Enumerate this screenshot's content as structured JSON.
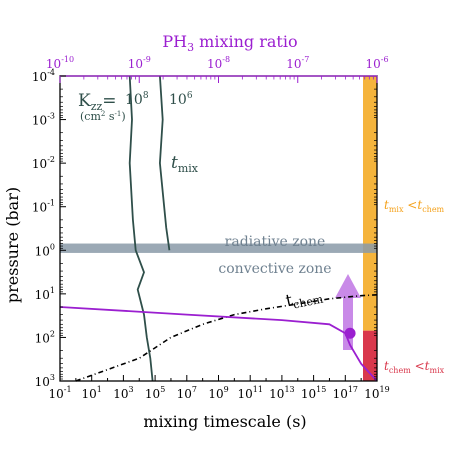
{
  "chart_data": {
    "type": "line",
    "title": "PH3 mixing ratio",
    "xlabel": "mixing timescale (s)",
    "ylabel": "pressure (bar)",
    "x_scale": "log",
    "y_scale": "log",
    "y_inverted": true,
    "xlim": [
      0.1,
      1e+19
    ],
    "ylim": [
      0.0001,
      1000.0
    ],
    "x_ticks": [
      {
        "value": 0.1,
        "label": "10^-1"
      },
      {
        "value": 10,
        "label": "10^1"
      },
      {
        "value": 1000.0,
        "label": "10^3"
      },
      {
        "value": 100000.0,
        "label": "10^5"
      },
      {
        "value": 10000000.0,
        "label": "10^7"
      },
      {
        "value": 1000000000.0,
        "label": "10^9"
      },
      {
        "value": 100000000000.0,
        "label": "10^11"
      },
      {
        "value": 10000000000000.0,
        "label": "10^13"
      },
      {
        "value": 1000000000000000.0,
        "label": "10^15"
      },
      {
        "value": 1e+17,
        "label": "10^17"
      },
      {
        "value": 1e+19,
        "label": "10^19"
      }
    ],
    "y_ticks": [
      {
        "value": 0.0001,
        "label": "10^-4"
      },
      {
        "value": 0.001,
        "label": "10^-3"
      },
      {
        "value": 0.01,
        "label": "10^-2"
      },
      {
        "value": 0.1,
        "label": "10^-1"
      },
      {
        "value": 1,
        "label": "10^0"
      },
      {
        "value": 10,
        "label": "10^1"
      },
      {
        "value": 100,
        "label": "10^2"
      },
      {
        "value": 1000,
        "label": "10^3"
      }
    ],
    "top_axis": {
      "label": "PH3 mixing ratio",
      "scale": "log",
      "range": [
        1e-10,
        1e-06
      ],
      "ticks": [
        {
          "value": 1e-10,
          "label": "10^-10"
        },
        {
          "value": 1e-09,
          "label": "10^-9"
        },
        {
          "value": 1e-08,
          "label": "10^-8"
        },
        {
          "value": 1e-07,
          "label": "10^-7"
        },
        {
          "value": 1e-06,
          "label": "10^-6"
        }
      ],
      "color": "#9b1fd0"
    },
    "series": [
      {
        "name": "t_mix K_zz=10^8",
        "color": "#2f4f4a",
        "points": [
          [
            2500.0,
            0.0001
          ],
          [
            3500.0,
            0.001
          ],
          [
            2500.0,
            0.01
          ],
          [
            4000.0,
            0.2
          ],
          [
            6000.0,
            1
          ],
          [
            20000.0,
            3.2
          ],
          [
            8000.0,
            8
          ],
          [
            20000.0,
            30
          ],
          [
            30000.0,
            100
          ],
          [
            50000.0,
            300
          ],
          [
            70000.0,
            1000
          ]
        ]
      },
      {
        "name": "t_mix K_zz=10^6",
        "color": "#2f4f4a",
        "points": [
          [
            200000.0,
            0.0001
          ],
          [
            300000.0,
            0.001
          ],
          [
            200000.0,
            0.01
          ],
          [
            500000.0,
            0.3
          ],
          [
            800000.0,
            1
          ]
        ]
      },
      {
        "name": "t_chem",
        "color": "#000000",
        "points": [
          [
            1,
            1000
          ],
          [
            10000.0,
            300
          ],
          [
            1000000.0,
            100
          ],
          [
            100000000.0,
            50
          ],
          [
            10000000000.0,
            30
          ],
          [
            1000000000000.0,
            22
          ],
          [
            100000000000000.0,
            17
          ],
          [
            1e+16,
            13
          ],
          [
            1e+18,
            11
          ],
          [
            1e+19,
            10.5
          ]
        ]
      },
      {
        "name": "PH3 mixing ratio",
        "color": "#9b1fd0",
        "points": [
          [
            0.1,
            20
          ],
          [
            10000000.0,
            30
          ],
          [
            10000000000000.0,
            40
          ],
          [
            1e+16,
            50
          ],
          [
            1e+17,
            80
          ],
          [
            2e+17,
            150
          ],
          [
            1e+18,
            400
          ],
          [
            1e+19,
            1000
          ]
        ]
      }
    ],
    "quench_point": {
      "x": 2e+17,
      "y": 80
    },
    "regions": [
      {
        "name": "radiative zone",
        "color": "#7f92a3",
        "y_band": [
          0.7,
          1.15
        ]
      },
      {
        "name": "convective zone",
        "color": "#7f92a3"
      }
    ],
    "side_bands": [
      {
        "color": "#f5b43c",
        "y_range": [
          0.0001,
          70
        ]
      },
      {
        "color": "#d9384c",
        "y_range": [
          70,
          1000
        ]
      }
    ]
  },
  "labels": {
    "title_main": "PH",
    "title_sub": "3",
    "title_rest": " mixing ratio",
    "ylabel": "pressure (bar)",
    "xlabel": "mixing timescale (s)",
    "kzz_main": "K",
    "kzz_sub": "zz",
    "kzz_eq": "=",
    "kzz_v1": "10",
    "kzz_v1_exp": "8",
    "kzz_v2": "10",
    "kzz_v2_exp": "6",
    "kzz_units": "(cm",
    "kzz_units_exp": "2",
    "kzz_units_s": " s",
    "kzz_units_exp2": "-1",
    "kzz_units_close": ")",
    "tmix": "t",
    "tmix_sub": "mix",
    "tchem": "t",
    "tchem_sub": "chem",
    "radiative": "radiative zone",
    "convective": "convective zone",
    "right_top_t1": "t",
    "right_top_s1": "mix",
    "right_top_lt": " <",
    "right_top_t2": "t",
    "right_top_s2": "chem",
    "right_bot_t1": "t",
    "right_bot_s1": "chem",
    "right_bot_lt": " <",
    "right_bot_t2": "t",
    "right_bot_s2": "mix"
  },
  "colors": {
    "purple": "#9b1fd0",
    "arrow": "#c98ae8",
    "orange": "#f5b43c",
    "red": "#d9384c",
    "zone": "#8a9aa8",
    "tmix": "#2f4f4a",
    "radiative_text": "#6f8190"
  }
}
